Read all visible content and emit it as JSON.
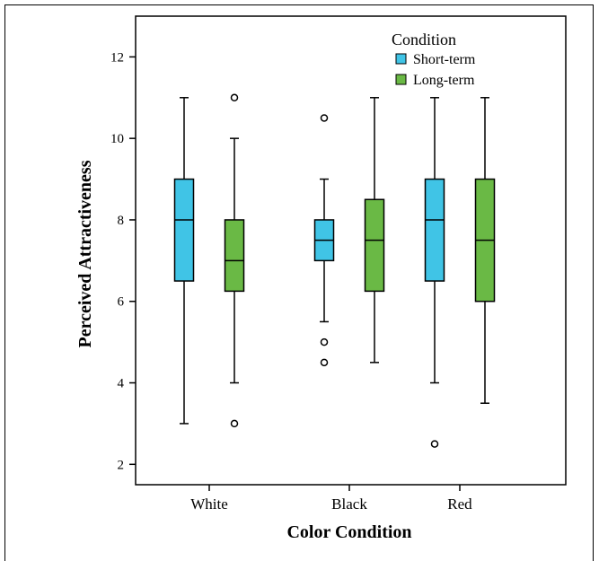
{
  "chart_data": {
    "type": "boxplot",
    "xlabel": "Color Condition",
    "ylabel": "Perceived Attractiveness",
    "ylim": [
      1.5,
      13
    ],
    "yticks": [
      2,
      4,
      6,
      8,
      10,
      12
    ],
    "categories": [
      "White",
      "Black",
      "Red"
    ],
    "legend": {
      "title": "Condition",
      "placement": "top-right"
    },
    "series": [
      {
        "name": "Short-term",
        "color": "#40c4e6",
        "boxes": [
          {
            "category": "White",
            "whisker_low": 3,
            "q1": 6.5,
            "median": 8,
            "q3": 9,
            "whisker_high": 11,
            "outliers": []
          },
          {
            "category": "Black",
            "whisker_low": 5.5,
            "q1": 7,
            "median": 7.5,
            "q3": 8,
            "whisker_high": 9,
            "outliers": [
              10.5,
              5,
              4.5
            ]
          },
          {
            "category": "Red",
            "whisker_low": 4,
            "q1": 6.5,
            "median": 8,
            "q3": 9,
            "whisker_high": 11,
            "outliers": [
              2.5
            ]
          }
        ]
      },
      {
        "name": "Long-term",
        "color": "#6ab945",
        "boxes": [
          {
            "category": "White",
            "whisker_low": 4,
            "q1": 6.25,
            "median": 7,
            "q3": 8,
            "whisker_high": 10,
            "outliers": [
              11,
              3
            ]
          },
          {
            "category": "Black",
            "whisker_low": 4.5,
            "q1": 6.25,
            "median": 7.5,
            "q3": 8.5,
            "whisker_high": 11,
            "outliers": []
          },
          {
            "category": "Red",
            "whisker_low": 3.5,
            "q1": 6,
            "median": 7.5,
            "q3": 9,
            "whisker_high": 11,
            "outliers": []
          }
        ]
      }
    ]
  }
}
